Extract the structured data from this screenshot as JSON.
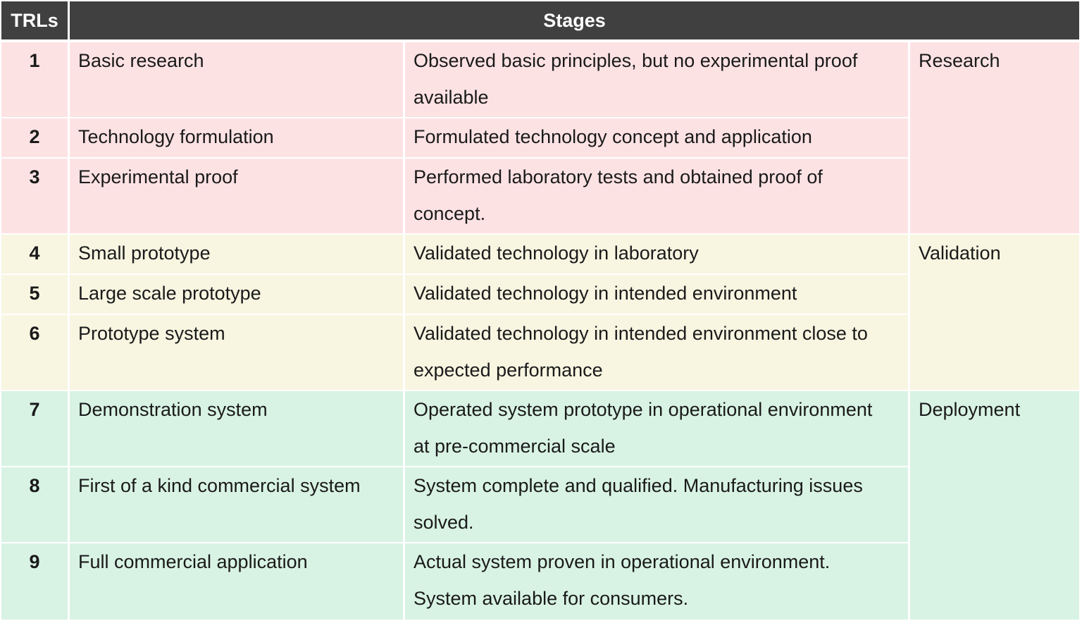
{
  "header": {
    "trls": "TRLs",
    "stages": "Stages"
  },
  "colors": {
    "header_bg": "#404040",
    "research_bg": "#fde2e4",
    "validation_bg": "#f8f5e1",
    "deployment_bg": "#d8f3e4",
    "grid": "#ffffff"
  },
  "rows": [
    {
      "trl": "1",
      "name": "Basic research",
      "desc1": "Observed basic principles, but no experimental proof",
      "desc2": "available"
    },
    {
      "trl": "2",
      "name": "Technology formulation",
      "desc1": "Formulated technology concept and application",
      "desc2": ""
    },
    {
      "trl": "3",
      "name": "Experimental proof",
      "desc1": "Performed laboratory tests and obtained proof of",
      "desc2": "concept."
    },
    {
      "trl": "4",
      "name": "Small prototype",
      "desc1": "Validated technology in laboratory",
      "desc2": ""
    },
    {
      "trl": "5",
      "name": "Large scale prototype",
      "desc1": "Validated technology in intended environment",
      "desc2": ""
    },
    {
      "trl": "6",
      "name": "Prototype system",
      "desc1": "Validated technology in intended environment close to",
      "desc2": "expected performance"
    },
    {
      "trl": "7",
      "name": "Demonstration system",
      "desc1": "Operated system prototype in operational environment",
      "desc2": "at pre-commercial scale"
    },
    {
      "trl": "8",
      "name": "First of a kind commercial system",
      "desc1": "System complete and qualified. Manufacturing issues",
      "desc2": "solved."
    },
    {
      "trl": "9",
      "name": "Full commercial application",
      "desc1": "Actual system proven in operational environment.",
      "desc2": "System available for consumers."
    }
  ],
  "phases": [
    {
      "label": "Research"
    },
    {
      "label": "Validation"
    },
    {
      "label": "Deployment"
    }
  ]
}
